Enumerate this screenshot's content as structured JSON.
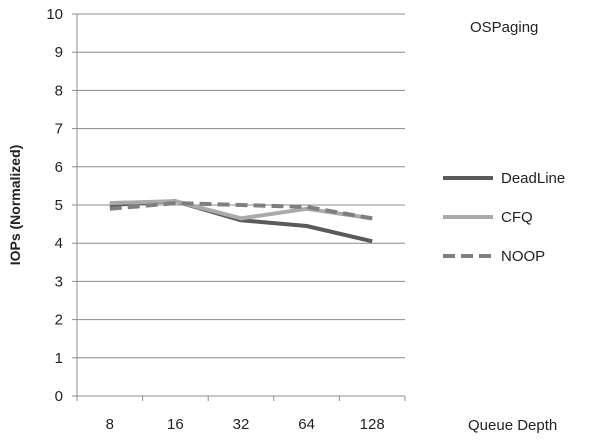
{
  "chart_data": {
    "type": "line",
    "title": "",
    "xlabel": "Queue Depth",
    "ylabel": "IOPs (Normalized)",
    "annotation": "OSPaging",
    "categories": [
      "8",
      "16",
      "32",
      "64",
      "128"
    ],
    "ylim": [
      0,
      10
    ],
    "yticks": [
      "0",
      "1",
      "2",
      "3",
      "4",
      "5",
      "6",
      "7",
      "8",
      "9",
      "10"
    ],
    "grid": true,
    "legend_position": "right",
    "series": [
      {
        "name": "DeadLine",
        "values": [
          5.0,
          5.1,
          4.6,
          4.45,
          4.05
        ],
        "color": "#5a5a5a",
        "style": "solid"
      },
      {
        "name": "CFQ",
        "values": [
          5.05,
          5.1,
          4.65,
          4.9,
          4.65
        ],
        "color": "#aaaaaa",
        "style": "solid"
      },
      {
        "name": "NOOP",
        "values": [
          4.9,
          5.05,
          5.0,
          4.95,
          4.65
        ],
        "color": "#7f7f7f",
        "style": "dashed"
      }
    ]
  }
}
